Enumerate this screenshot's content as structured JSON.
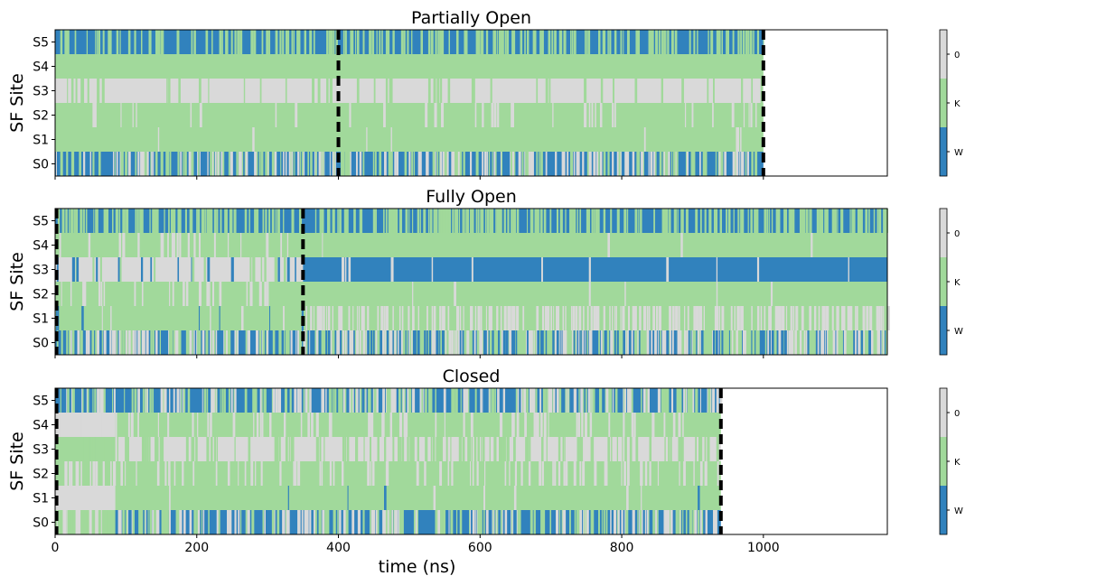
{
  "colors": {
    "W": "#3182bd",
    "K": "#a1d99b",
    "0": "#d9d9d9",
    "frame": "#000000",
    "line": "#000000"
  },
  "shared": {
    "xlabel": "time (ns)",
    "ylabel": "SF Site",
    "xlim": [
      0,
      1175
    ],
    "x_ticks": [
      0,
      200,
      400,
      600,
      800,
      1000
    ],
    "x_tick_labels": [
      "0",
      "200",
      "400",
      "600",
      "800",
      "1000"
    ],
    "y_tick_labels": [
      "S5",
      "S4",
      "S3",
      "S2",
      "S1",
      "S0"
    ],
    "colorbar_labels": [
      "0",
      "K",
      "W"
    ]
  },
  "chart_data": [
    {
      "type": "heatmap",
      "title": "Partially Open",
      "end_time": 1000,
      "dashed_lines": [
        400,
        1000
      ],
      "rows": [
        {
          "site": "S5",
          "base": "W",
          "others": [
            "K"
          ],
          "dens": [
            0.22,
            0.25
          ]
        },
        {
          "site": "S4",
          "base": "K",
          "others": [],
          "dens": [
            0,
            0
          ]
        },
        {
          "site": "S3",
          "base": "0",
          "others": [
            "K"
          ],
          "dens": [
            0.05,
            0.05
          ]
        },
        {
          "site": "S2",
          "base": "K",
          "others": [
            "0"
          ],
          "dens": [
            0.04,
            0.05
          ]
        },
        {
          "site": "S1",
          "base": "K",
          "others": [
            "0"
          ],
          "dens": [
            0.005,
            0.01
          ]
        },
        {
          "site": "S0",
          "base": "W",
          "others": [
            "K",
            "0"
          ],
          "dens": [
            0.3,
            0.3
          ]
        }
      ]
    },
    {
      "type": "heatmap",
      "title": "Fully Open",
      "end_time": 1175,
      "dashed_lines": [
        2,
        350
      ],
      "rows": [
        {
          "site": "S5",
          "base": "W",
          "others": [
            "K"
          ],
          "dens": [
            0.3,
            0.28
          ]
        },
        {
          "site": "S4",
          "base": "K",
          "others": [
            "0"
          ],
          "dens": [
            0.08,
            0.004
          ]
        },
        {
          "site": "S3",
          "base": "0",
          "others": [
            "K",
            "W"
          ],
          "dens": [
            0.1,
            0.015
          ],
          "base_after": "W",
          "others_after": [
            "0"
          ]
        },
        {
          "site": "S2",
          "base": "K",
          "others": [
            "0"
          ],
          "dens": [
            0.06,
            0.01
          ]
        },
        {
          "site": "S1",
          "base": "K",
          "others": [
            "W",
            "0"
          ],
          "dens": [
            0.04,
            0.25
          ],
          "others_after": [
            "0"
          ]
        },
        {
          "site": "S0",
          "base": "W",
          "others": [
            "K",
            "0"
          ],
          "dens": [
            0.35,
            0.4
          ],
          "base_after": "K",
          "others_after": [
            "W",
            "0"
          ]
        }
      ]
    },
    {
      "type": "heatmap",
      "title": "Closed",
      "end_time": 940,
      "dashed_lines": [
        2,
        940
      ],
      "rows": [
        {
          "site": "S5",
          "base": "W",
          "others": [
            "K",
            "0"
          ],
          "dens": [
            0.35,
            0.3
          ]
        },
        {
          "site": "S4",
          "base": "K",
          "others": [
            "0"
          ],
          "dens": [
            0.15,
            0.1
          ],
          "base_before": "0"
        },
        {
          "site": "S3",
          "base": "0",
          "others": [
            "K"
          ],
          "dens": [
            0.2,
            0.15
          ],
          "base_before": "K"
        },
        {
          "site": "S2",
          "base": "K",
          "others": [
            "0"
          ],
          "dens": [
            0.15,
            0.1
          ]
        },
        {
          "site": "S1",
          "base": "K",
          "others": [
            "W",
            "0"
          ],
          "dens": [
            0.01,
            0.02
          ],
          "base_before": "0"
        },
        {
          "site": "S0",
          "base": "W",
          "others": [
            "K",
            "0"
          ],
          "dens": [
            0.3,
            0.3
          ],
          "base_before": "K"
        }
      ]
    }
  ]
}
